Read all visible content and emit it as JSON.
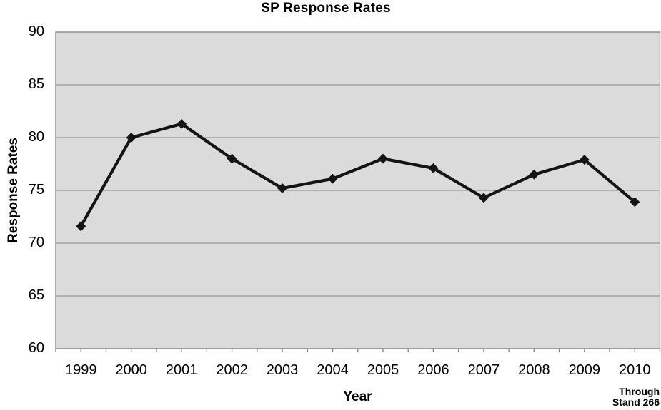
{
  "page": {
    "background": "#ffffff"
  },
  "chart_data": {
    "type": "line",
    "title": "SP Response Rates",
    "xlabel": "Year",
    "ylabel": "Response Rates",
    "categories": [
      "1999",
      "2000",
      "2001",
      "2002",
      "2003",
      "2004",
      "2005",
      "2006",
      "2007",
      "2008",
      "2009",
      "2010"
    ],
    "series": [
      {
        "name": "SP Response Rates",
        "values": [
          71.6,
          80.0,
          81.3,
          78.0,
          75.2,
          76.1,
          78.0,
          77.1,
          74.3,
          76.5,
          77.9,
          73.9
        ],
        "color": "#141414",
        "marker": "diamond"
      }
    ],
    "ylim": [
      60,
      90
    ],
    "yticks": [
      60,
      65,
      70,
      75,
      80,
      85,
      90
    ],
    "grid": "horizontal",
    "legend_position": "none",
    "footnote_lines": [
      "Through",
      "Stand 266"
    ],
    "colors": {
      "plot_background": "#dbdbdb",
      "gridline": "#878787",
      "axis_border": "#7f7f7f",
      "tick": "#7f7f7f",
      "text": "#000000"
    }
  }
}
